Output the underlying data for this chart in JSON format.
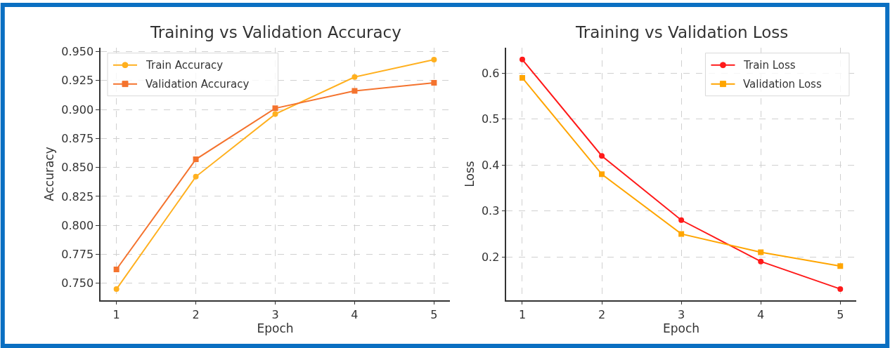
{
  "chart_data": [
    {
      "type": "line",
      "title": "Training vs Validation Accuracy",
      "xlabel": "Epoch",
      "ylabel": "Accuracy",
      "x": [
        1,
        2,
        3,
        4,
        5
      ],
      "series": [
        {
          "name": "Train Accuracy",
          "color": "#ffb01f",
          "marker": "circle",
          "values": [
            0.745,
            0.842,
            0.896,
            0.928,
            0.943
          ]
        },
        {
          "name": "Validation Accuracy",
          "color": "#f4732e",
          "marker": "square",
          "values": [
            0.762,
            0.857,
            0.901,
            0.916,
            0.923
          ]
        }
      ],
      "xlim": [
        0.8,
        5.2
      ],
      "xticks": [
        1,
        2,
        3,
        4,
        5
      ],
      "ylim": [
        0.7356,
        0.953
      ],
      "yticks": [
        {
          "value": 0.75,
          "label": "0.750"
        },
        {
          "value": 0.775,
          "label": "0.775"
        },
        {
          "value": 0.8,
          "label": "0.800"
        },
        {
          "value": 0.825,
          "label": "0.825"
        },
        {
          "value": 0.85,
          "label": "0.850"
        },
        {
          "value": 0.875,
          "label": "0.875"
        },
        {
          "value": 0.9,
          "label": "0.900"
        },
        {
          "value": 0.925,
          "label": "0.925"
        },
        {
          "value": 0.95,
          "label": "0.950"
        }
      ],
      "grid": true,
      "legend": "top left",
      "line_style": "solid"
    },
    {
      "type": "line",
      "title": "Training vs Validation Loss",
      "xlabel": "Epoch",
      "ylabel": "Loss",
      "x": [
        1,
        2,
        3,
        4,
        5
      ],
      "series": [
        {
          "name": "Train Loss",
          "color": "#ff1a1a",
          "marker": "circle",
          "values": [
            0.63,
            0.42,
            0.28,
            0.19,
            0.13
          ]
        },
        {
          "name": "Validation Loss",
          "color": "#ffa500",
          "marker": "square",
          "values": [
            0.59,
            0.38,
            0.25,
            0.21,
            0.18
          ]
        }
      ],
      "xlim": [
        0.8,
        5.2
      ],
      "xticks": [
        1,
        2,
        3,
        4,
        5
      ],
      "ylim": [
        0.106,
        0.655
      ],
      "yticks": [
        0.2,
        0.3,
        0.4,
        0.5,
        0.6
      ],
      "grid": true,
      "legend": "top right",
      "line_style": "solid"
    }
  ]
}
